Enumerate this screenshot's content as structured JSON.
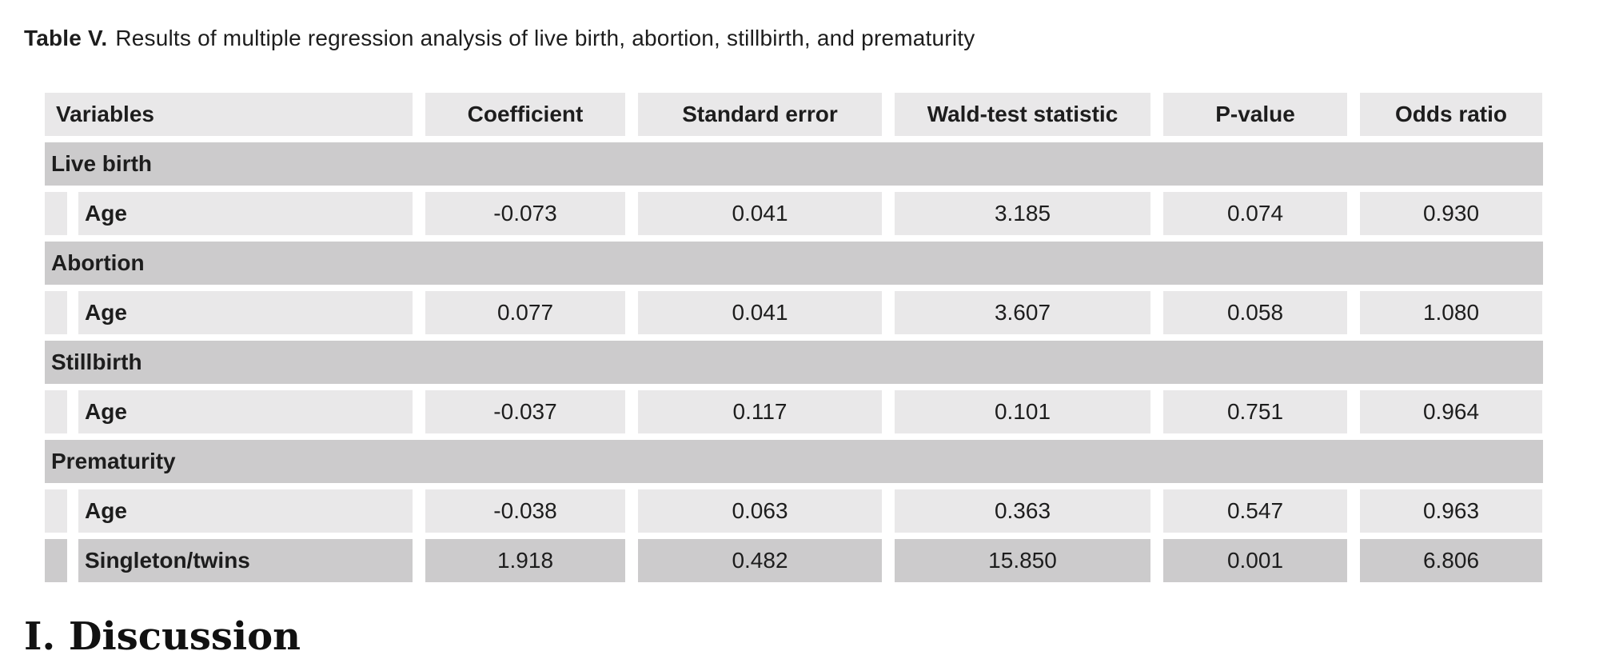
{
  "title": {
    "label": "Table V.",
    "text": "Results of multiple regression analysis of live birth, abortion, stillbirth, and prematurity"
  },
  "next_section": {
    "heading": "I. Discussion"
  },
  "colors": {
    "cell_light": "#e9e8e9",
    "cell_dark": "#cccbcc",
    "text": "#1d1d1d"
  },
  "chart_data": {
    "type": "table",
    "columns": [
      "Variables",
      "Coefficient",
      "Standard error",
      "Wald-test statistic",
      "P-value",
      "Odds ratio"
    ],
    "sections": [
      {
        "name": "Live birth",
        "rows": [
          {
            "variable": "Age",
            "values": [
              "-0.073",
              "0.041",
              "3.185",
              "0.074",
              "0.930"
            ]
          }
        ]
      },
      {
        "name": "Abortion",
        "rows": [
          {
            "variable": "Age",
            "values": [
              "0.077",
              "0.041",
              "3.607",
              "0.058",
              "1.080"
            ]
          }
        ]
      },
      {
        "name": "Stillbirth",
        "rows": [
          {
            "variable": "Age",
            "values": [
              "-0.037",
              "0.117",
              "0.101",
              "0.751",
              "0.964"
            ]
          }
        ]
      },
      {
        "name": "Prematurity",
        "rows": [
          {
            "variable": "Age",
            "values": [
              "-0.038",
              "0.063",
              "0.363",
              "0.547",
              "0.963"
            ]
          },
          {
            "variable": "Singleton/twins",
            "values": [
              "1.918",
              "0.482",
              "15.850",
              "0.001",
              "6.806"
            ]
          }
        ]
      }
    ]
  }
}
